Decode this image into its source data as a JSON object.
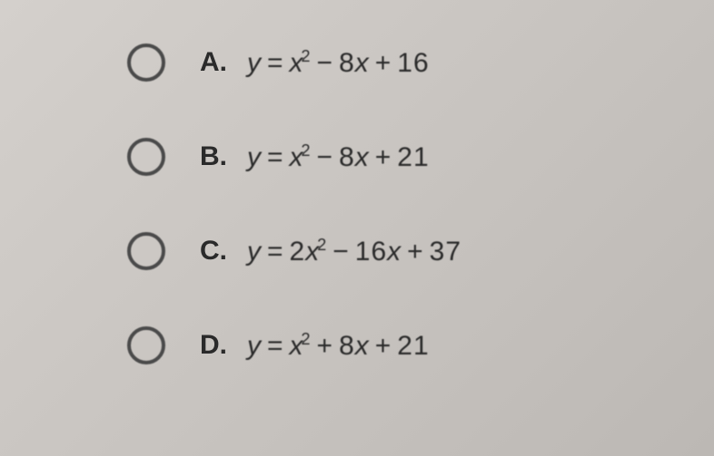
{
  "options": [
    {
      "letter": "A.",
      "lhs": "y",
      "coef": "",
      "term1": "x",
      "exp": "2",
      "op1": "−",
      "term2_coef": "8",
      "term2_var": "x",
      "op2": "+",
      "constant": "16"
    },
    {
      "letter": "B.",
      "lhs": "y",
      "coef": "",
      "term1": "x",
      "exp": "2",
      "op1": "−",
      "term2_coef": "8",
      "term2_var": "x",
      "op2": "+",
      "constant": "21"
    },
    {
      "letter": "C.",
      "lhs": "y",
      "coef": "2",
      "term1": "x",
      "exp": "2",
      "op1": "−",
      "term2_coef": "16",
      "term2_var": "x",
      "op2": "+",
      "constant": "37"
    },
    {
      "letter": "D.",
      "lhs": "y",
      "coef": "",
      "term1": "x",
      "exp": "2",
      "op1": "+",
      "term2_coef": "8",
      "term2_var": "x",
      "op2": "+",
      "constant": "21"
    }
  ]
}
